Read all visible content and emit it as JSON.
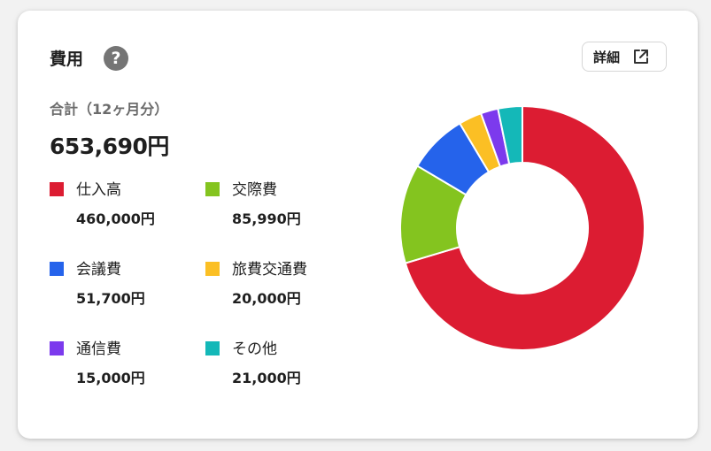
{
  "card": {
    "title": "費用",
    "help_icon_glyph": "?",
    "detail_button_label": "詳細",
    "total_label": "合計（12ヶ月分）",
    "total_value": "653,690円"
  },
  "icons": {
    "help": "question-circle-icon",
    "detail": "external-link-icon"
  },
  "chart_data": {
    "type": "pie",
    "style": "donut",
    "categories": [
      "仕入高",
      "交際費",
      "会議費",
      "旅費交通費",
      "通信費",
      "その他"
    ],
    "values": [
      460000,
      85990,
      51700,
      20000,
      15000,
      21000
    ],
    "value_labels": [
      "460,000円",
      "85,990円",
      "51,700円",
      "20,000円",
      "15,000円",
      "21,000円"
    ],
    "colors": [
      "#dc1c32",
      "#84c41f",
      "#2563eb",
      "#fbbf24",
      "#7c3aed",
      "#14b8b8"
    ],
    "legend_placement": "left"
  }
}
